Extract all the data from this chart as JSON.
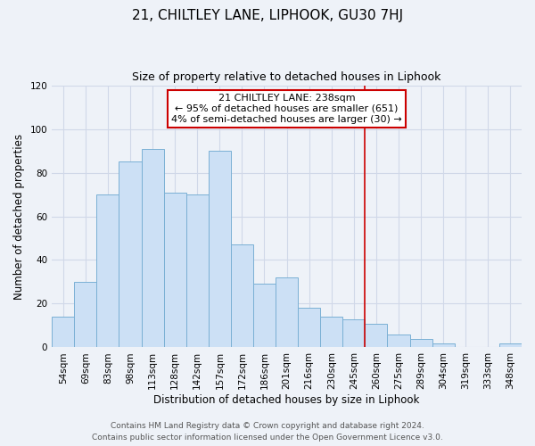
{
  "title": "21, CHILTLEY LANE, LIPHOOK, GU30 7HJ",
  "subtitle": "Size of property relative to detached houses in Liphook",
  "xlabel": "Distribution of detached houses by size in Liphook",
  "ylabel": "Number of detached properties",
  "bar_labels": [
    "54sqm",
    "69sqm",
    "83sqm",
    "98sqm",
    "113sqm",
    "128sqm",
    "142sqm",
    "157sqm",
    "172sqm",
    "186sqm",
    "201sqm",
    "216sqm",
    "230sqm",
    "245sqm",
    "260sqm",
    "275sqm",
    "289sqm",
    "304sqm",
    "319sqm",
    "333sqm",
    "348sqm"
  ],
  "bar_values": [
    14,
    30,
    70,
    85,
    91,
    71,
    70,
    90,
    47,
    29,
    32,
    18,
    14,
    13,
    11,
    6,
    4,
    2,
    0,
    0,
    2
  ],
  "bar_color": "#cce0f5",
  "bar_edge_color": "#7ab0d4",
  "vline_x": 13.5,
  "vline_color": "#cc0000",
  "ylim": [
    0,
    120
  ],
  "yticks": [
    0,
    20,
    40,
    60,
    80,
    100,
    120
  ],
  "annotation_title": "21 CHILTLEY LANE: 238sqm",
  "annotation_line1": "← 95% of detached houses are smaller (651)",
  "annotation_line2": "4% of semi-detached houses are larger (30) →",
  "annotation_box_color": "#ffffff",
  "annotation_box_edge": "#cc0000",
  "footer_line1": "Contains HM Land Registry data © Crown copyright and database right 2024.",
  "footer_line2": "Contains public sector information licensed under the Open Government Licence v3.0.",
  "background_color": "#eef2f8",
  "grid_color": "#d0d8e8",
  "title_fontsize": 11,
  "subtitle_fontsize": 9,
  "axis_label_fontsize": 8.5,
  "tick_fontsize": 7.5,
  "annotation_fontsize": 8,
  "footer_fontsize": 6.5
}
